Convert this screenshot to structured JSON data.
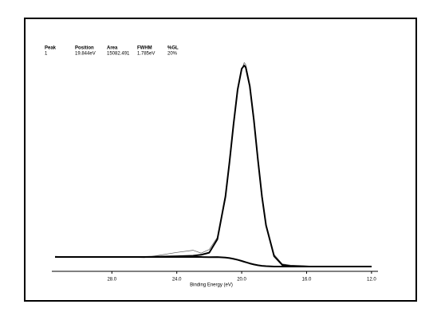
{
  "chart_data": {
    "type": "line",
    "xlabel": "Binding Energy (eV)",
    "xlim": [
      31.7,
      11.6
    ],
    "ylim": [
      0,
      100
    ],
    "xticks": [
      {
        "value": 28,
        "label": "28.0"
      },
      {
        "value": 24,
        "label": "24.0"
      },
      {
        "value": 20,
        "label": "20.0"
      },
      {
        "value": 16,
        "label": "16.0"
      },
      {
        "value": 12,
        "label": "12.0"
      }
    ],
    "x": [
      31.5,
      30,
      28,
      26,
      24,
      23,
      22.5,
      22,
      21.5,
      21,
      20.75,
      20.5,
      20.25,
      20,
      19.844,
      19.75,
      19.5,
      19.25,
      19,
      18.75,
      18.5,
      18,
      17.5,
      17,
      16,
      15,
      14,
      13,
      12
    ],
    "series": [
      {
        "color": "#555555",
        "line_width": 0.7,
        "values": [
          6.3,
          5.8,
          6.1,
          5.7,
          7.9,
          8.8,
          7.6,
          9.1,
          14.2,
          30.2,
          46.8,
          60.4,
          76.8,
          84.1,
          87.2,
          86.3,
          78.1,
          62.0,
          47.5,
          30.4,
          19.9,
          7.0,
          3.1,
          2.6,
          2.3,
          1.8,
          2.1,
          1.9,
          2.0
        ]
      },
      {
        "color": "#000000",
        "line_width": 2,
        "values": [
          6,
          6,
          6,
          6,
          6.3,
          6.5,
          6.9,
          7.8,
          13.4,
          31.3,
          45.7,
          61.6,
          75.9,
          84.6,
          86.0,
          85.2,
          77.3,
          63.2,
          46.6,
          31.2,
          19.2,
          6.3,
          2.7,
          2.2,
          2,
          2,
          2,
          2,
          2
        ]
      },
      {
        "color": "#000000",
        "line_width": 2,
        "values": [
          6,
          6,
          6,
          6,
          6,
          6,
          5.98,
          5.9,
          5.94,
          5.74,
          5.54,
          5.22,
          4.82,
          4.33,
          4.0,
          3.8,
          3.3,
          2.87,
          2.53,
          2.3,
          2.15,
          2.02,
          2.0,
          2.0,
          2,
          2,
          2,
          2,
          2
        ]
      }
    ],
    "peak_table": {
      "headers": [
        "Peak",
        "Position",
        "Area",
        "FWHM",
        "%GL"
      ],
      "rows": [
        [
          "1",
          "19.844eV",
          "15082.491",
          "1.785eV",
          "20%"
        ]
      ]
    }
  }
}
